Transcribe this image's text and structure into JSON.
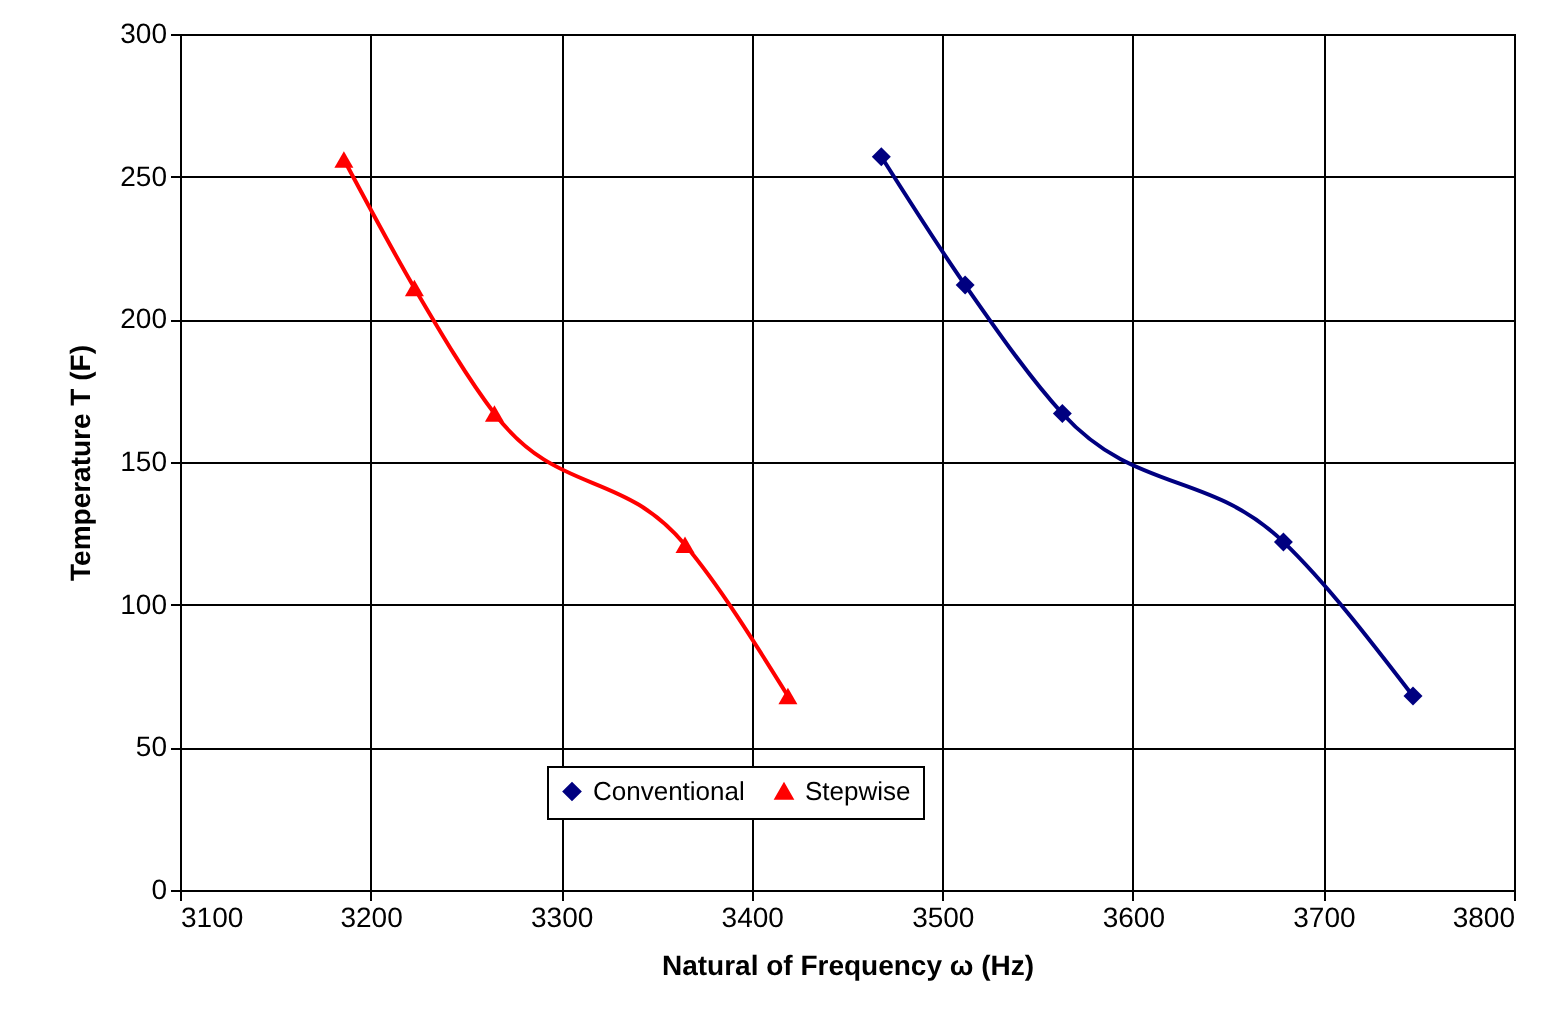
{
  "chart_data": {
    "type": "line",
    "xlabel": "Natural of Frequency ω (Hz)",
    "ylabel": "Temperature T (F)",
    "series": [
      {
        "name": "Conventional",
        "color": "#000080",
        "marker": "diamond",
        "x": [
          3468,
          3512,
          3563,
          3679,
          3747
        ],
        "values": [
          257,
          212,
          167,
          122,
          68
        ]
      },
      {
        "name": "Stepwise",
        "color": "#ff0000",
        "marker": "triangle",
        "x": [
          3186,
          3223,
          3265,
          3365,
          3419
        ],
        "values": [
          256,
          211,
          167,
          121,
          68
        ]
      }
    ],
    "xlim": [
      3100,
      3800
    ],
    "xticks": [
      3100,
      3200,
      3300,
      3400,
      3500,
      3600,
      3700,
      3800
    ],
    "ylim": [
      0,
      300
    ],
    "yticks": [
      0,
      50,
      100,
      150,
      200,
      250,
      300
    ],
    "grid": true,
    "legend": "bottom",
    "line_style": "solid"
  }
}
